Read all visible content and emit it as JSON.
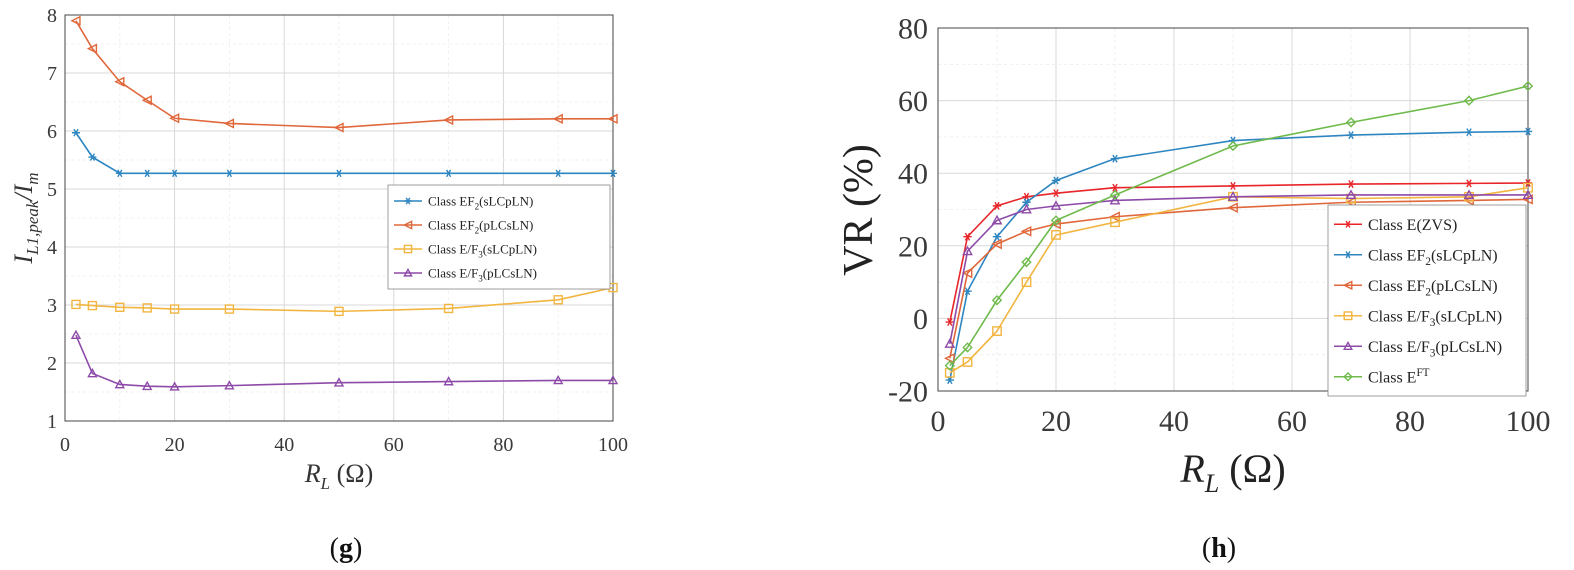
{
  "chart_data": [
    {
      "type": "line",
      "panel_label": "(g)",
      "panel_letter": "g",
      "xlabel_main": "R",
      "xlabel_sub": "L",
      "xlabel_unit": " (Ω)",
      "ylabel_main": "I",
      "ylabel_sub1": "L1,peak",
      "ylabel_mid": "/I",
      "ylabel_sub2": "m",
      "xlim": [
        0,
        100
      ],
      "ylim": [
        1,
        8
      ],
      "xticks": [
        0,
        20,
        40,
        60,
        80,
        100
      ],
      "yticks": [
        1,
        2,
        3,
        4,
        5,
        6,
        7,
        8
      ],
      "grid": true,
      "legend_position": "center-right",
      "x": [
        2,
        5,
        10,
        15,
        20,
        30,
        50,
        70,
        90,
        100
      ],
      "series": [
        {
          "name": "Class EF2(sLCpLN)",
          "legend_main": "Class EF",
          "legend_sub": "2",
          "legend_rest": "(sLCpLN)",
          "color": "#2e86c1",
          "marker": "star",
          "values": [
            5.97,
            5.55,
            5.27,
            5.27,
            5.27,
            5.27,
            5.27,
            5.27,
            5.27,
            5.27
          ]
        },
        {
          "name": "Class EF2(pLCsLN)",
          "legend_main": "Class EF",
          "legend_sub": "2",
          "legend_rest": "(pLCsLN)",
          "color": "#e0673a",
          "marker": "triangle-left",
          "values": [
            7.9,
            7.42,
            6.85,
            6.53,
            6.22,
            6.13,
            6.06,
            6.19,
            6.21,
            6.21
          ]
        },
        {
          "name": "Class E/F3(sLCpLN)",
          "legend_main": "Class E/F",
          "legend_sub": "3",
          "legend_rest": "(sLCpLN)",
          "color": "#f2b540",
          "marker": "square",
          "values": [
            3.01,
            2.99,
            2.96,
            2.95,
            2.93,
            2.93,
            2.89,
            2.94,
            3.09,
            3.3
          ]
        },
        {
          "name": "Class E/F3(pLCsLN)",
          "legend_main": "Class E/F",
          "legend_sub": "3",
          "legend_rest": "(pLCsLN)",
          "color": "#8e4aa8",
          "marker": "triangle-up",
          "values": [
            2.48,
            1.82,
            1.63,
            1.6,
            1.59,
            1.61,
            1.66,
            1.68,
            1.7,
            1.7
          ]
        }
      ]
    },
    {
      "type": "line",
      "panel_label": "(h)",
      "panel_letter": "h",
      "xlabel_main": "R",
      "xlabel_sub": "L",
      "xlabel_unit": " (Ω)",
      "ylabel": "VR (%)",
      "xlim": [
        0,
        100
      ],
      "ylim": [
        -20,
        80
      ],
      "xticks": [
        0,
        20,
        40,
        60,
        80,
        100
      ],
      "yticks": [
        -20,
        0,
        20,
        40,
        60,
        80
      ],
      "grid": true,
      "legend_position": "bottom-right",
      "x": [
        2,
        5,
        10,
        15,
        20,
        30,
        50,
        70,
        90,
        100
      ],
      "series": [
        {
          "name": "Class E(ZVS)",
          "legend_main": "Class E(ZVS)",
          "legend_sub": "",
          "legend_rest": "",
          "color": "#e8262a",
          "marker": "star",
          "values": [
            -1,
            22.5,
            31,
            33.5,
            34.5,
            36,
            36.5,
            37,
            37.2,
            37.3
          ]
        },
        {
          "name": "Class EF2(sLCpLN)",
          "legend_main": "Class EF",
          "legend_sub": "2",
          "legend_rest": "(sLCpLN)",
          "color": "#2e86c1",
          "marker": "star",
          "values": [
            -17,
            7.5,
            22.5,
            32,
            38,
            44,
            49,
            50.5,
            51.3,
            51.5
          ]
        },
        {
          "name": "Class EF2(pLCsLN)",
          "legend_main": "Class EF",
          "legend_sub": "2",
          "legend_rest": "(pLCsLN)",
          "color": "#e0673a",
          "marker": "triangle-left",
          "values": [
            -11,
            12.5,
            20.5,
            24,
            26,
            28,
            30.5,
            32,
            32.5,
            32.8
          ]
        },
        {
          "name": "Class E/F3(sLCpLN)",
          "legend_main": "Class E/F",
          "legend_sub": "3",
          "legend_rest": "(sLCpLN)",
          "color": "#f2b540",
          "marker": "square",
          "values": [
            -15,
            -12,
            -3.5,
            10,
            23,
            26.5,
            33.5,
            33,
            33.5,
            36
          ]
        },
        {
          "name": "Class E/F3(pLCsLN)",
          "legend_main": "Class E/F",
          "legend_sub": "3",
          "legend_rest": "(pLCsLN)",
          "color": "#8e4aa8",
          "marker": "triangle-up",
          "values": [
            -7,
            18.5,
            27,
            30,
            31,
            32.5,
            33.5,
            34,
            34,
            34
          ]
        },
        {
          "name": "Class EFT",
          "legend_main": "Class E",
          "legend_sup": "FT",
          "legend_sub": "",
          "legend_rest": "",
          "color": "#6fba4b",
          "marker": "diamond",
          "values": [
            -13,
            -8,
            5,
            15.5,
            27,
            34,
            47.5,
            54,
            60,
            64
          ]
        }
      ]
    }
  ]
}
